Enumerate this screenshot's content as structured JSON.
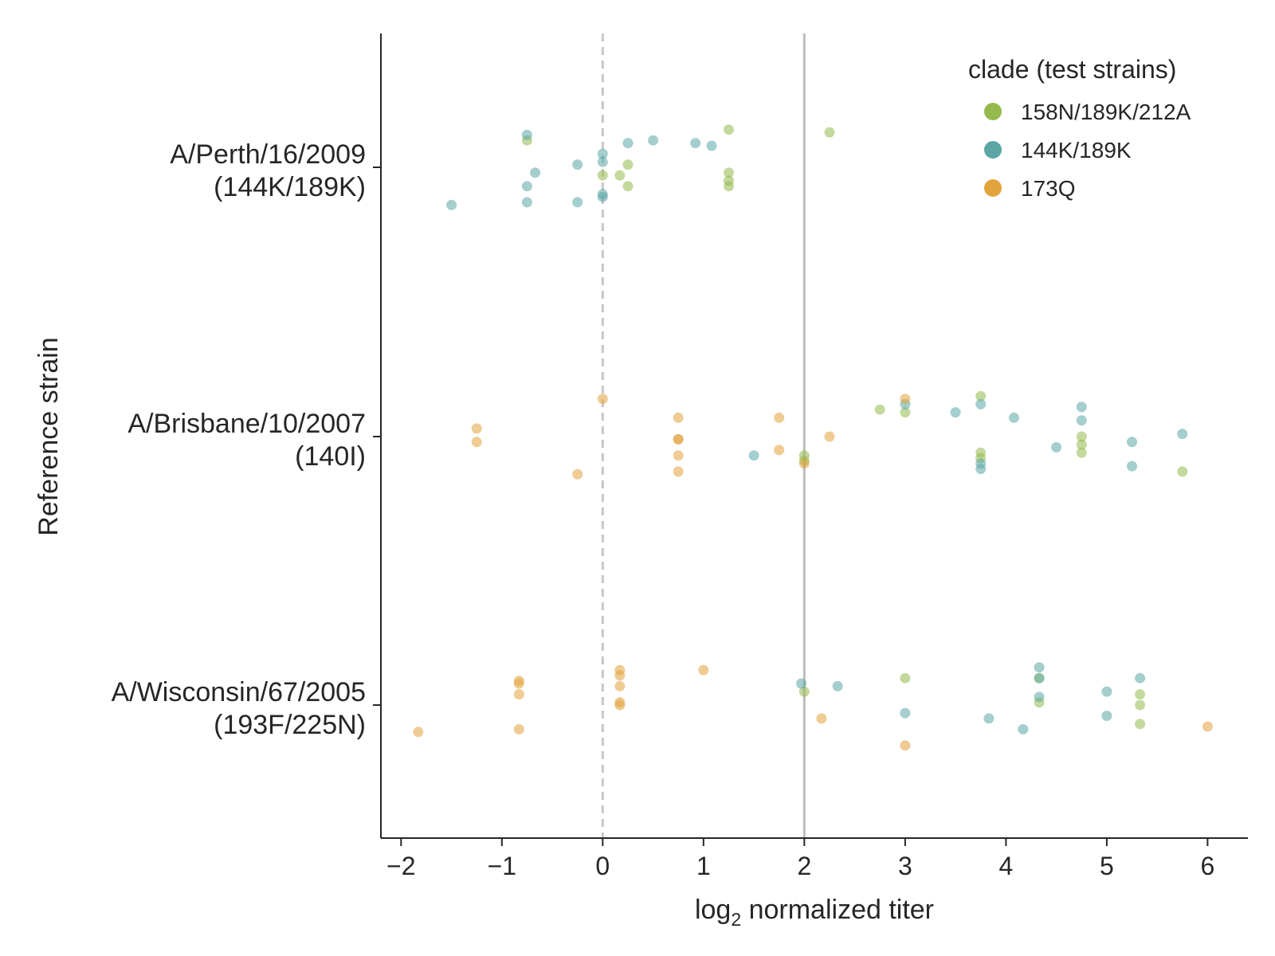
{
  "chart_data": {
    "type": "scatter",
    "xlabel_prefix": "log",
    "xlabel_sub": "2",
    "xlabel_suffix": " normalized titer",
    "ylabel": "Reference strain",
    "xlim": [
      -2.2,
      6.4
    ],
    "xticks": [
      -2,
      -1,
      0,
      1,
      2,
      3,
      4,
      5,
      6
    ],
    "xtick_labels": [
      "−2",
      "−1",
      "0",
      "1",
      "2",
      "3",
      "4",
      "5",
      "6"
    ],
    "categories": [
      {
        "line1": "A/Perth/16/2009",
        "line2": "(144K/189K)"
      },
      {
        "line1": "A/Brisbane/10/2007",
        "line2": "(140I)"
      },
      {
        "line1": "A/Wisconsin/67/2005",
        "line2": "(193F/225N)"
      }
    ],
    "reference_lines": [
      {
        "x": 0,
        "style": "dashed",
        "color": "#c7c7c7"
      },
      {
        "x": 2,
        "style": "solid",
        "color": "#bdbdbd"
      }
    ],
    "legend": {
      "title": "clade (test strains)",
      "position": "top-right"
    },
    "series": [
      {
        "name": "158N/189K/212A",
        "color": "#94ba4d",
        "points": [
          {
            "x": -0.75,
            "cat": 0,
            "j": -0.1
          },
          {
            "x": 0.0,
            "cat": 0,
            "j": 0.03
          },
          {
            "x": 0.17,
            "cat": 0,
            "j": 0.03
          },
          {
            "x": 0.25,
            "cat": 0,
            "j": -0.01
          },
          {
            "x": 0.25,
            "cat": 0,
            "j": 0.07
          },
          {
            "x": 1.25,
            "cat": 0,
            "j": -0.14
          },
          {
            "x": 1.25,
            "cat": 0,
            "j": 0.02
          },
          {
            "x": 1.25,
            "cat": 0,
            "j": 0.05
          },
          {
            "x": 1.25,
            "cat": 0,
            "j": 0.07
          },
          {
            "x": 2.25,
            "cat": 0,
            "j": -0.13
          },
          {
            "x": 2.0,
            "cat": 1,
            "j": 0.07
          },
          {
            "x": 2.0,
            "cat": 1,
            "j": 0.09
          },
          {
            "x": 2.75,
            "cat": 1,
            "j": -0.1
          },
          {
            "x": 3.0,
            "cat": 1,
            "j": -0.09
          },
          {
            "x": 3.75,
            "cat": 1,
            "j": -0.15
          },
          {
            "x": 3.75,
            "cat": 1,
            "j": 0.06
          },
          {
            "x": 3.75,
            "cat": 1,
            "j": 0.08
          },
          {
            "x": 4.75,
            "cat": 1,
            "j": 0.0
          },
          {
            "x": 4.75,
            "cat": 1,
            "j": 0.03
          },
          {
            "x": 4.75,
            "cat": 1,
            "j": 0.06
          },
          {
            "x": 5.75,
            "cat": 1,
            "j": 0.13
          },
          {
            "x": 2.0,
            "cat": 2,
            "j": -0.05
          },
          {
            "x": 3.0,
            "cat": 2,
            "j": -0.1
          },
          {
            "x": 4.33,
            "cat": 2,
            "j": -0.1
          },
          {
            "x": 4.33,
            "cat": 2,
            "j": -0.01
          },
          {
            "x": 5.33,
            "cat": 2,
            "j": -0.04
          },
          {
            "x": 5.33,
            "cat": 2,
            "j": 0.0
          },
          {
            "x": 5.33,
            "cat": 2,
            "j": 0.07
          }
        ]
      },
      {
        "name": "144K/189K",
        "color": "#5ba5a5",
        "points": [
          {
            "x": -1.5,
            "cat": 0,
            "j": 0.14
          },
          {
            "x": -0.75,
            "cat": 0,
            "j": -0.12
          },
          {
            "x": -0.75,
            "cat": 0,
            "j": 0.07
          },
          {
            "x": -0.75,
            "cat": 0,
            "j": 0.13
          },
          {
            "x": -0.67,
            "cat": 0,
            "j": 0.02
          },
          {
            "x": -0.25,
            "cat": 0,
            "j": -0.01
          },
          {
            "x": -0.25,
            "cat": 0,
            "j": 0.13
          },
          {
            "x": 0.0,
            "cat": 0,
            "j": -0.05
          },
          {
            "x": 0.0,
            "cat": 0,
            "j": -0.02
          },
          {
            "x": 0.0,
            "cat": 0,
            "j": 0.1
          },
          {
            "x": 0.0,
            "cat": 0,
            "j": 0.11
          },
          {
            "x": 0.25,
            "cat": 0,
            "j": -0.09
          },
          {
            "x": 0.5,
            "cat": 0,
            "j": -0.1
          },
          {
            "x": 0.92,
            "cat": 0,
            "j": -0.09
          },
          {
            "x": 1.08,
            "cat": 0,
            "j": -0.08
          },
          {
            "x": 1.5,
            "cat": 1,
            "j": 0.07
          },
          {
            "x": 3.0,
            "cat": 1,
            "j": -0.12
          },
          {
            "x": 3.5,
            "cat": 1,
            "j": -0.09
          },
          {
            "x": 3.75,
            "cat": 1,
            "j": -0.12
          },
          {
            "x": 3.75,
            "cat": 1,
            "j": 0.1
          },
          {
            "x": 3.75,
            "cat": 1,
            "j": 0.12
          },
          {
            "x": 4.08,
            "cat": 1,
            "j": -0.07
          },
          {
            "x": 4.5,
            "cat": 1,
            "j": 0.04
          },
          {
            "x": 4.75,
            "cat": 1,
            "j": -0.11
          },
          {
            "x": 4.75,
            "cat": 1,
            "j": -0.06
          },
          {
            "x": 5.25,
            "cat": 1,
            "j": 0.02
          },
          {
            "x": 5.25,
            "cat": 1,
            "j": 0.11
          },
          {
            "x": 5.75,
            "cat": 1,
            "j": -0.01
          },
          {
            "x": 1.97,
            "cat": 2,
            "j": -0.08
          },
          {
            "x": 2.33,
            "cat": 2,
            "j": -0.07
          },
          {
            "x": 3.0,
            "cat": 2,
            "j": 0.03
          },
          {
            "x": 3.83,
            "cat": 2,
            "j": 0.05
          },
          {
            "x": 4.17,
            "cat": 2,
            "j": 0.09
          },
          {
            "x": 4.33,
            "cat": 2,
            "j": -0.14
          },
          {
            "x": 4.33,
            "cat": 2,
            "j": -0.1
          },
          {
            "x": 4.33,
            "cat": 2,
            "j": -0.03
          },
          {
            "x": 5.0,
            "cat": 2,
            "j": -0.05
          },
          {
            "x": 5.0,
            "cat": 2,
            "j": 0.04
          },
          {
            "x": 5.33,
            "cat": 2,
            "j": -0.1
          }
        ]
      },
      {
        "name": "173Q",
        "color": "#e2a23d",
        "points": [
          {
            "x": -1.25,
            "cat": 1,
            "j": -0.03
          },
          {
            "x": -1.25,
            "cat": 1,
            "j": 0.02
          },
          {
            "x": -0.25,
            "cat": 1,
            "j": 0.14
          },
          {
            "x": 0.0,
            "cat": 1,
            "j": -0.14
          },
          {
            "x": 0.75,
            "cat": 1,
            "j": -0.07
          },
          {
            "x": 0.75,
            "cat": 1,
            "j": 0.01
          },
          {
            "x": 0.75,
            "cat": 1,
            "j": 0.01
          },
          {
            "x": 0.75,
            "cat": 1,
            "j": 0.07
          },
          {
            "x": 0.75,
            "cat": 1,
            "j": 0.13
          },
          {
            "x": 1.75,
            "cat": 1,
            "j": -0.07
          },
          {
            "x": 1.75,
            "cat": 1,
            "j": 0.05
          },
          {
            "x": 2.0,
            "cat": 1,
            "j": 0.1
          },
          {
            "x": 2.25,
            "cat": 1,
            "j": 0.0
          },
          {
            "x": 3.0,
            "cat": 1,
            "j": -0.14
          },
          {
            "x": -1.83,
            "cat": 2,
            "j": 0.1
          },
          {
            "x": -0.83,
            "cat": 2,
            "j": -0.09
          },
          {
            "x": -0.83,
            "cat": 2,
            "j": -0.08
          },
          {
            "x": -0.83,
            "cat": 2,
            "j": -0.04
          },
          {
            "x": -0.83,
            "cat": 2,
            "j": 0.09
          },
          {
            "x": 0.17,
            "cat": 2,
            "j": -0.13
          },
          {
            "x": 0.17,
            "cat": 2,
            "j": -0.11
          },
          {
            "x": 0.17,
            "cat": 2,
            "j": -0.07
          },
          {
            "x": 0.17,
            "cat": 2,
            "j": -0.01
          },
          {
            "x": 0.17,
            "cat": 2,
            "j": 0.0
          },
          {
            "x": 1.0,
            "cat": 2,
            "j": -0.13
          },
          {
            "x": 2.17,
            "cat": 2,
            "j": 0.05
          },
          {
            "x": 3.0,
            "cat": 2,
            "j": 0.15
          },
          {
            "x": 6.0,
            "cat": 2,
            "j": 0.08
          }
        ]
      }
    ]
  }
}
